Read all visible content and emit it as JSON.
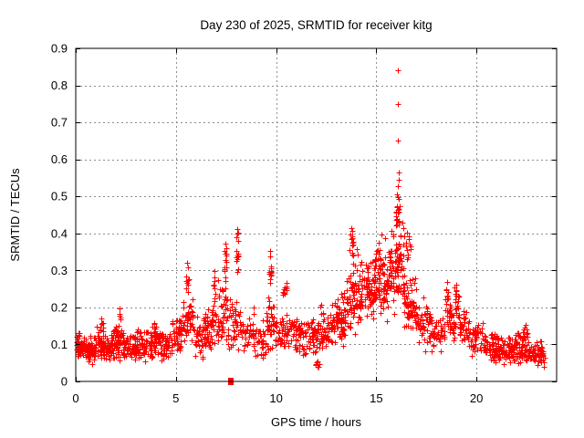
{
  "chart_data": {
    "type": "scatter",
    "title": "Day 230 of 2025, SRMTID for receiver kitg",
    "xlabel": "GPS time / hours",
    "ylabel": "SRMTID / TECUs",
    "xlim": [
      0,
      24
    ],
    "ylim": [
      0,
      0.9
    ],
    "xticks": [
      "0",
      "5",
      "10",
      "15",
      "20"
    ],
    "yticks": [
      "0",
      "0.1",
      "0.2",
      "0.3",
      "0.4",
      "0.5",
      "0.6",
      "0.7",
      "0.8",
      "0.9"
    ],
    "grid": true,
    "legend": "none",
    "marker": "plus",
    "marker_size_px": 7,
    "colors": {
      "points": "#ff0000",
      "axis": "#000000",
      "grid": "#8c8c8c",
      "background": "#ffffff",
      "text": "#000000"
    },
    "seed": 1337,
    "clusters_format": "[hour_start, hour_end, point_count, srmtid_mean, srmtid_halfspread]",
    "clusters": [
      [
        0.0,
        0.5,
        55,
        0.095,
        0.03
      ],
      [
        0.5,
        1.0,
        55,
        0.085,
        0.035
      ],
      [
        1.0,
        1.4,
        45,
        0.105,
        0.045
      ],
      [
        1.4,
        1.9,
        50,
        0.09,
        0.04
      ],
      [
        1.9,
        2.4,
        50,
        0.11,
        0.05
      ],
      [
        2.4,
        3.0,
        55,
        0.092,
        0.038
      ],
      [
        3.0,
        3.6,
        55,
        0.105,
        0.045
      ],
      [
        3.6,
        4.2,
        50,
        0.11,
        0.048
      ],
      [
        4.2,
        4.8,
        50,
        0.1,
        0.042
      ],
      [
        4.8,
        5.3,
        45,
        0.14,
        0.065
      ],
      [
        5.3,
        5.9,
        45,
        0.165,
        0.075
      ],
      [
        5.9,
        6.5,
        45,
        0.13,
        0.06
      ],
      [
        6.5,
        7.1,
        45,
        0.16,
        0.07
      ],
      [
        7.1,
        7.6,
        40,
        0.185,
        0.09
      ],
      [
        7.6,
        8.3,
        45,
        0.15,
        0.08
      ],
      [
        8.3,
        9.0,
        40,
        0.13,
        0.06
      ],
      [
        9.0,
        9.5,
        30,
        0.115,
        0.05
      ],
      [
        9.5,
        9.9,
        35,
        0.165,
        0.08
      ],
      [
        9.9,
        10.6,
        45,
        0.135,
        0.055
      ],
      [
        10.6,
        11.4,
        55,
        0.13,
        0.055
      ],
      [
        11.4,
        12.2,
        60,
        0.125,
        0.055
      ],
      [
        12.2,
        12.9,
        55,
        0.145,
        0.06
      ],
      [
        12.9,
        13.5,
        60,
        0.175,
        0.07
      ],
      [
        13.5,
        14.2,
        70,
        0.22,
        0.085
      ],
      [
        14.2,
        14.9,
        70,
        0.25,
        0.08
      ],
      [
        14.9,
        15.6,
        75,
        0.27,
        0.085
      ],
      [
        15.6,
        16.4,
        90,
        0.3,
        0.095
      ],
      [
        16.4,
        17.0,
        60,
        0.215,
        0.08
      ],
      [
        17.0,
        17.7,
        50,
        0.16,
        0.06
      ],
      [
        17.7,
        18.4,
        40,
        0.14,
        0.055
      ],
      [
        18.4,
        19.1,
        45,
        0.17,
        0.06
      ],
      [
        19.1,
        19.7,
        40,
        0.15,
        0.055
      ],
      [
        19.7,
        20.4,
        45,
        0.115,
        0.045
      ],
      [
        20.4,
        21.1,
        55,
        0.095,
        0.04
      ],
      [
        21.1,
        21.9,
        65,
        0.085,
        0.035
      ],
      [
        21.9,
        22.6,
        65,
        0.092,
        0.042
      ],
      [
        22.6,
        23.4,
        70,
        0.075,
        0.035
      ],
      [
        7.42,
        7.54,
        12,
        0.31,
        0.075
      ],
      [
        8.0,
        8.12,
        12,
        0.35,
        0.055
      ],
      [
        9.64,
        9.78,
        12,
        0.29,
        0.055
      ],
      [
        13.68,
        13.84,
        12,
        0.37,
        0.045
      ],
      [
        14.95,
        15.12,
        10,
        0.33,
        0.05
      ],
      [
        15.98,
        16.18,
        16,
        0.44,
        0.045
      ],
      [
        16.45,
        16.75,
        10,
        0.37,
        0.04
      ],
      [
        5.5,
        5.64,
        8,
        0.27,
        0.045
      ],
      [
        6.84,
        6.96,
        8,
        0.25,
        0.04
      ],
      [
        10.35,
        10.55,
        10,
        0.245,
        0.03
      ],
      [
        11.95,
        12.15,
        7,
        0.048,
        0.018
      ],
      [
        18.45,
        18.62,
        8,
        0.23,
        0.03
      ],
      [
        18.9,
        19.15,
        10,
        0.225,
        0.035
      ],
      [
        22.3,
        22.6,
        8,
        0.135,
        0.02
      ],
      [
        1.25,
        1.38,
        6,
        0.155,
        0.025
      ],
      [
        2.12,
        2.26,
        6,
        0.172,
        0.025
      ],
      [
        3.88,
        4.02,
        6,
        0.15,
        0.022
      ],
      [
        0.05,
        0.25,
        6,
        0.125,
        0.02
      ]
    ],
    "outlier_points": [
      [
        16.07,
        0.84
      ],
      [
        16.07,
        0.75
      ],
      [
        16.08,
        0.652
      ],
      [
        16.1,
        0.565
      ],
      [
        16.11,
        0.545
      ],
      [
        16.09,
        0.528
      ],
      [
        16.05,
        0.505
      ],
      [
        16.08,
        0.498
      ],
      [
        16.12,
        0.492
      ],
      [
        16.03,
        0.472
      ],
      [
        16.14,
        0.465
      ],
      [
        16.07,
        0.455
      ],
      [
        16.3,
        0.43
      ],
      [
        16.35,
        0.415
      ],
      [
        15.75,
        0.408
      ],
      [
        15.85,
        0.398
      ],
      [
        13.74,
        0.415
      ],
      [
        13.78,
        0.408
      ],
      [
        13.72,
        0.398
      ],
      [
        13.8,
        0.388
      ],
      [
        8.04,
        0.413
      ],
      [
        8.07,
        0.4
      ],
      [
        8.03,
        0.39
      ],
      [
        8.09,
        0.38
      ],
      [
        7.46,
        0.372
      ],
      [
        7.5,
        0.36
      ],
      [
        7.48,
        0.344
      ],
      [
        9.69,
        0.352
      ],
      [
        9.72,
        0.338
      ],
      [
        5.56,
        0.32
      ],
      [
        5.6,
        0.308
      ],
      [
        6.9,
        0.298
      ],
      [
        15.25,
        0.398
      ],
      [
        15.42,
        0.386
      ],
      [
        15.12,
        0.375
      ],
      [
        14.02,
        0.358
      ],
      [
        14.08,
        0.342
      ],
      [
        16.55,
        0.402
      ],
      [
        16.62,
        0.385
      ],
      [
        2.2,
        0.198
      ],
      [
        18.52,
        0.27
      ],
      [
        19.0,
        0.262
      ],
      [
        22.45,
        0.152
      ]
    ],
    "special_points": [
      {
        "t": 7.74,
        "v": 0.0,
        "marker": "filled-square",
        "color": "#ff0000"
      }
    ]
  }
}
